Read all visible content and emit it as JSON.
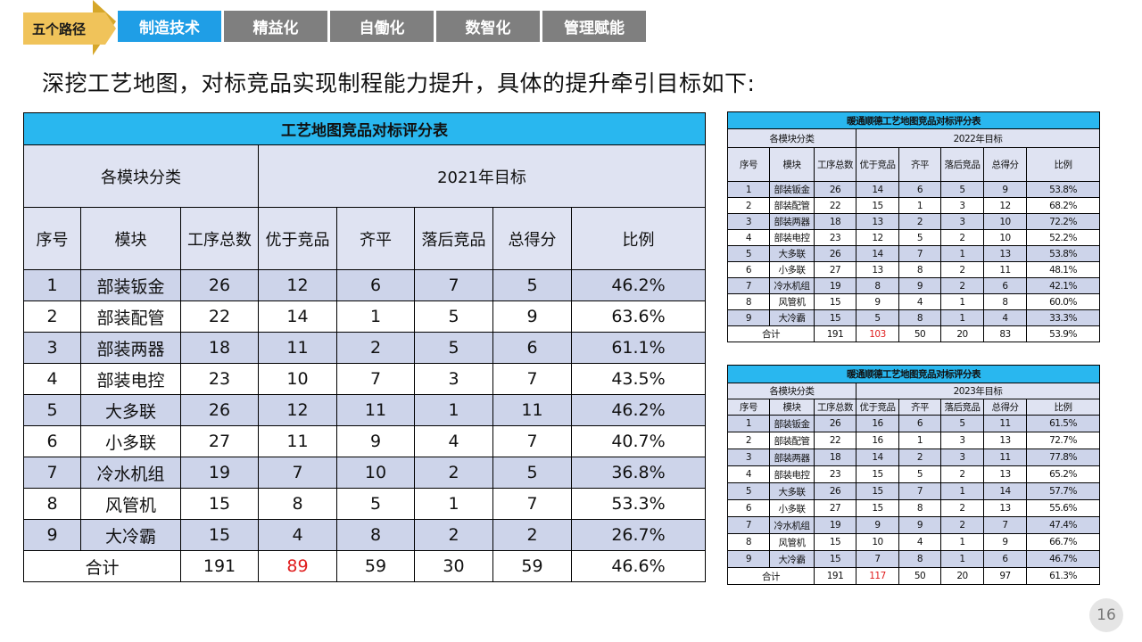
{
  "nav": {
    "badge": "五个路径",
    "tabs": [
      "制造技术",
      "精益化",
      "自働化",
      "数智化",
      "管理赋能"
    ],
    "colors": {
      "active": "#1f9ee6",
      "inactive": "#7f7f7f",
      "badge": "#f0c35a"
    }
  },
  "headline": "深挖工艺地图，对标竞品实现制程能力提升，具体的提升牵引目标如下:",
  "columns": [
    "序号",
    "模块",
    "工序总数",
    "优于竞品",
    "齐平",
    "落后竞品",
    "总得分",
    "比例"
  ],
  "main_table": {
    "title": "工艺地图竞品对标评分表",
    "group_left": "各模块分类",
    "group_right": "2021年目标",
    "rows": [
      [
        "1",
        "部装钣金",
        "26",
        "12",
        "6",
        "7",
        "5",
        "46.2%"
      ],
      [
        "2",
        "部装配管",
        "22",
        "14",
        "1",
        "5",
        "9",
        "63.6%"
      ],
      [
        "3",
        "部装两器",
        "18",
        "11",
        "2",
        "5",
        "6",
        "61.1%"
      ],
      [
        "4",
        "部装电控",
        "23",
        "10",
        "7",
        "3",
        "7",
        "43.5%"
      ],
      [
        "5",
        "大多联",
        "26",
        "12",
        "11",
        "1",
        "11",
        "46.2%"
      ],
      [
        "6",
        "小多联",
        "27",
        "11",
        "9",
        "4",
        "7",
        "40.7%"
      ],
      [
        "7",
        "冷水机组",
        "19",
        "7",
        "10",
        "2",
        "5",
        "36.8%"
      ],
      [
        "8",
        "风管机",
        "15",
        "8",
        "5",
        "1",
        "7",
        "53.3%"
      ],
      [
        "9",
        "大冷霸",
        "15",
        "4",
        "8",
        "2",
        "2",
        "26.7%"
      ]
    ],
    "total": [
      "合计",
      "191",
      "89",
      "59",
      "30",
      "59",
      "46.6%"
    ]
  },
  "table_2022": {
    "title": "暖通顺德工艺地图竞品对标评分表",
    "group_left": "各模块分类",
    "group_right": "2022年目标",
    "rows": [
      [
        "1",
        "部装钣金",
        "26",
        "14",
        "6",
        "5",
        "9",
        "53.8%"
      ],
      [
        "2",
        "部装配管",
        "22",
        "15",
        "1",
        "3",
        "12",
        "68.2%"
      ],
      [
        "3",
        "部装两器",
        "18",
        "13",
        "2",
        "3",
        "10",
        "72.2%"
      ],
      [
        "4",
        "部装电控",
        "23",
        "12",
        "5",
        "2",
        "10",
        "52.2%"
      ],
      [
        "5",
        "大多联",
        "26",
        "14",
        "7",
        "1",
        "13",
        "53.8%"
      ],
      [
        "6",
        "小多联",
        "27",
        "13",
        "8",
        "2",
        "11",
        "48.1%"
      ],
      [
        "7",
        "冷水机组",
        "19",
        "8",
        "9",
        "2",
        "6",
        "42.1%"
      ],
      [
        "8",
        "风管机",
        "15",
        "9",
        "4",
        "1",
        "8",
        "60.0%"
      ],
      [
        "9",
        "大冷霸",
        "15",
        "5",
        "8",
        "1",
        "4",
        "33.3%"
      ]
    ],
    "total": [
      "合计",
      "191",
      "103",
      "50",
      "20",
      "83",
      "53.9%"
    ]
  },
  "table_2023": {
    "title": "暖通顺德工艺地图竞品对标评分表",
    "group_left": "各模块分类",
    "group_right": "2023年目标",
    "rows": [
      [
        "1",
        "部装钣金",
        "26",
        "16",
        "6",
        "5",
        "11",
        "61.5%"
      ],
      [
        "2",
        "部装配管",
        "22",
        "16",
        "1",
        "3",
        "13",
        "72.7%"
      ],
      [
        "3",
        "部装两器",
        "18",
        "14",
        "2",
        "3",
        "11",
        "77.8%"
      ],
      [
        "4",
        "部装电控",
        "23",
        "15",
        "5",
        "2",
        "13",
        "65.2%"
      ],
      [
        "5",
        "大多联",
        "26",
        "15",
        "7",
        "1",
        "14",
        "57.7%"
      ],
      [
        "6",
        "小多联",
        "27",
        "15",
        "8",
        "2",
        "13",
        "55.6%"
      ],
      [
        "7",
        "冷水机组",
        "19",
        "9",
        "9",
        "2",
        "7",
        "47.4%"
      ],
      [
        "8",
        "风管机",
        "15",
        "10",
        "4",
        "1",
        "9",
        "66.7%"
      ],
      [
        "9",
        "大冷霸",
        "15",
        "7",
        "8",
        "1",
        "6",
        "46.7%"
      ]
    ],
    "total": [
      "合计",
      "191",
      "117",
      "50",
      "20",
      "97",
      "61.3%"
    ]
  },
  "page_number": "16"
}
